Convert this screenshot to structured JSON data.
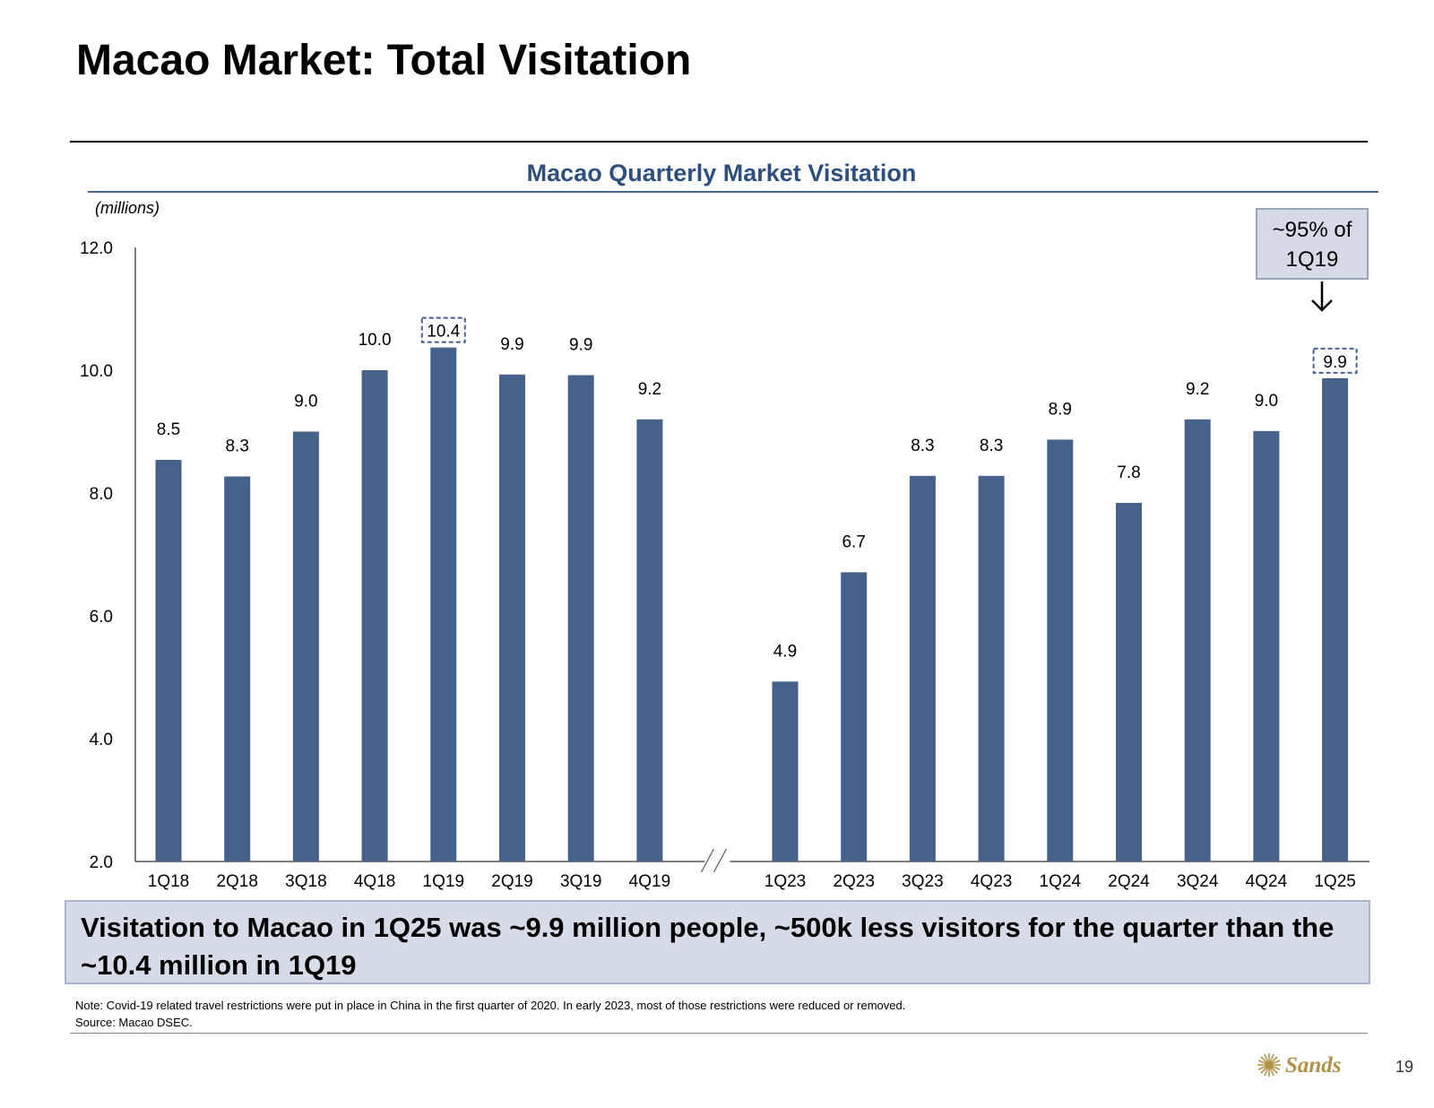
{
  "header": {
    "title": "Macao Market: Total Visitation"
  },
  "chart_data": {
    "type": "bar",
    "title": "Macao Quarterly Market Visitation",
    "ylabel": "(millions)",
    "xlabel": "",
    "ylim": [
      2.0,
      12.0
    ],
    "yticks": [
      "2.0",
      "4.0",
      "6.0",
      "8.0",
      "10.0",
      "12.0"
    ],
    "grid": false,
    "axis_break_after": "4Q19",
    "color": "#46628c",
    "categories": [
      "1Q18",
      "2Q18",
      "3Q18",
      "4Q18",
      "1Q19",
      "2Q19",
      "3Q19",
      "4Q19",
      "1Q23",
      "2Q23",
      "3Q23",
      "4Q23",
      "1Q24",
      "2Q24",
      "3Q24",
      "4Q24",
      "1Q25"
    ],
    "values": [
      8.54,
      8.27,
      9.0,
      10.0,
      10.37,
      9.93,
      9.92,
      9.2,
      4.93,
      6.71,
      8.28,
      8.28,
      8.87,
      7.84,
      9.2,
      9.01,
      9.87
    ],
    "labels": [
      "8.5",
      "8.3",
      "9.0",
      "10.0",
      "10.4",
      "9.9",
      "9.9",
      "9.2",
      "4.9",
      "6.7",
      "8.3",
      "8.3",
      "8.9",
      "7.8",
      "9.2",
      "9.0",
      "9.9"
    ],
    "highlighted_labels": [
      "1Q19",
      "1Q25"
    ]
  },
  "callout": {
    "line1": "~95% of",
    "line2": "1Q19"
  },
  "summary": {
    "text": "Visitation to Macao in 1Q25 was ~9.9 million people, ~500k less visitors for the quarter than the ~10.4 million in 1Q19"
  },
  "footer": {
    "note": "Note: Covid-19 related travel restrictions were put in place in China in the first quarter of 2020.  In early 2023, most of those restrictions were reduced or removed.",
    "source": "Source: Macao DSEC.",
    "logo_text": "Sands",
    "page_number": "19"
  },
  "colors": {
    "bar": "#46628c",
    "chart_title": "#2f4f7f",
    "summary_bg": "#d6dbe8",
    "callout_bg": "#d5dae6",
    "logo_gold": "#b0924a"
  }
}
